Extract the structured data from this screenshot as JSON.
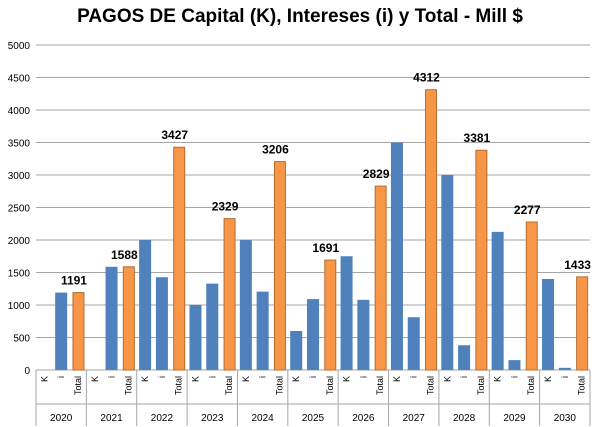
{
  "chart_data": {
    "type": "bar",
    "title": "PAGOS DE Capital (K), Intereses (i) y Total - Mill $",
    "xlabel": "",
    "ylabel": "",
    "ylim": [
      0,
      5000
    ],
    "yticks": [
      0,
      500,
      1000,
      1500,
      2000,
      2500,
      3000,
      3500,
      4000,
      4500,
      5000
    ],
    "grid": true,
    "sub_labels": [
      "K",
      "i",
      "Total"
    ],
    "categories": [
      "2020",
      "2021",
      "2022",
      "2023",
      "2024",
      "2025",
      "2026",
      "2027",
      "2028",
      "2029",
      "2030"
    ],
    "series": [
      {
        "name": "K",
        "color": "#4f81bd",
        "values": [
          0,
          0,
          2000,
          1000,
          2000,
          600,
          1750,
          3500,
          3000,
          2125,
          1400
        ]
      },
      {
        "name": "i",
        "color": "#4f81bd",
        "values": [
          1191,
          1588,
          1427,
          1329,
          1206,
          1091,
          1079,
          812,
          381,
          152,
          33
        ]
      },
      {
        "name": "Total",
        "color": "#f79646",
        "values": [
          1191,
          1588,
          3427,
          2329,
          3206,
          1691,
          2829,
          4312,
          3381,
          2277,
          1433
        ]
      }
    ],
    "data_labels": [
      "1191",
      "1588",
      "3427",
      "2329",
      "3206",
      "1691",
      "2829",
      "4312",
      "3381",
      "2277",
      "1433"
    ]
  }
}
